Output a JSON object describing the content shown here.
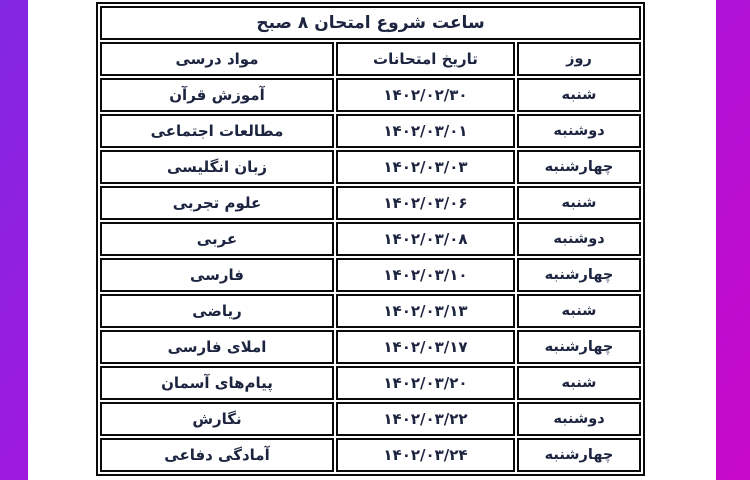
{
  "page": {
    "background_gradient": [
      "#8227e2",
      "#c708c8"
    ],
    "paper_color": "#ffffff"
  },
  "table": {
    "title": "ساعت شروع امتحان  ۸ صبح",
    "header_bg": "#fbf8cd",
    "border_color": "#0a0a0a",
    "text_color": "#1c2440",
    "columns": [
      {
        "key": "day",
        "label": "روز"
      },
      {
        "key": "date",
        "label": "تاریخ امتحانات"
      },
      {
        "key": "subject",
        "label": "مواد درسی"
      }
    ],
    "rows": [
      {
        "subject": "آموزش قرآن",
        "date": "۱۴۰۲/۰۲/۳۰",
        "day": "شنبه"
      },
      {
        "subject": "مطالعات اجتماعی",
        "date": "۱۴۰۲/۰۳/۰۱",
        "day": "دوشنبه"
      },
      {
        "subject": "زبان انگلیسی",
        "date": "۱۴۰۲/۰۳/۰۳",
        "day": "چهارشنبه"
      },
      {
        "subject": "علوم تجربی",
        "date": "۱۴۰۲/۰۳/۰۶",
        "day": "شنبه"
      },
      {
        "subject": "عربی",
        "date": "۱۴۰۲/۰۳/۰۸",
        "day": "دوشنبه"
      },
      {
        "subject": "فارسی",
        "date": "۱۴۰۲/۰۳/۱۰",
        "day": "چهارشنبه"
      },
      {
        "subject": "ریاضی",
        "date": "۱۴۰۲/۰۳/۱۳",
        "day": "شنبه"
      },
      {
        "subject": "املای فارسی",
        "date": "۱۴۰۲/۰۳/۱۷",
        "day": "چهارشنبه"
      },
      {
        "subject": "پیام‌های آسمان",
        "date": "۱۴۰۲/۰۳/۲۰",
        "day": "شنبه"
      },
      {
        "subject": "نگارش",
        "date": "۱۴۰۲/۰۳/۲۲",
        "day": "دوشنبه"
      },
      {
        "subject": "آمادگی دفاعی",
        "date": "۱۴۰۲/۰۳/۲۴",
        "day": "چهارشنبه"
      }
    ]
  }
}
